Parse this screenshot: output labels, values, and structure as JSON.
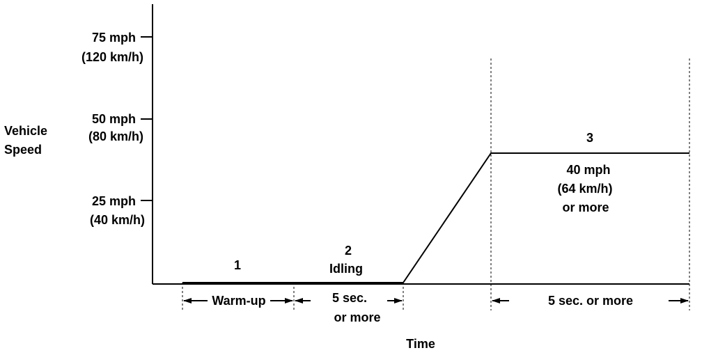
{
  "chart_data": {
    "type": "line",
    "ylabel": [
      "Vehicle",
      "Speed"
    ],
    "xlabel": "Time",
    "y_ticks": [
      {
        "value": 75,
        "lines": [
          "75 mph",
          "(120 km/h)"
        ]
      },
      {
        "value": 50,
        "lines": [
          "50 mph",
          "(80 km/h)"
        ]
      },
      {
        "value": 25,
        "lines": [
          "25 mph",
          "(40 km/h)"
        ]
      }
    ],
    "ylim": [
      0,
      87
    ],
    "profile": [
      {
        "phase": 1,
        "speed": 0
      },
      {
        "phase": 2,
        "speed": 0
      },
      {
        "phase": 3,
        "speed": 40
      }
    ],
    "phases": [
      {
        "number": "1",
        "description": ""
      },
      {
        "number": "2",
        "description": "Idling"
      },
      {
        "number": "3",
        "description_lines": [
          "40 mph",
          "(64 km/h)",
          "or more"
        ]
      }
    ],
    "durations": [
      {
        "label_lines": [
          "Warm-up"
        ]
      },
      {
        "label_lines": [
          "5 sec.",
          "or  more"
        ]
      },
      {
        "label_lines": [
          "5 sec. or  more"
        ]
      }
    ],
    "grid": false,
    "legend": "none"
  }
}
